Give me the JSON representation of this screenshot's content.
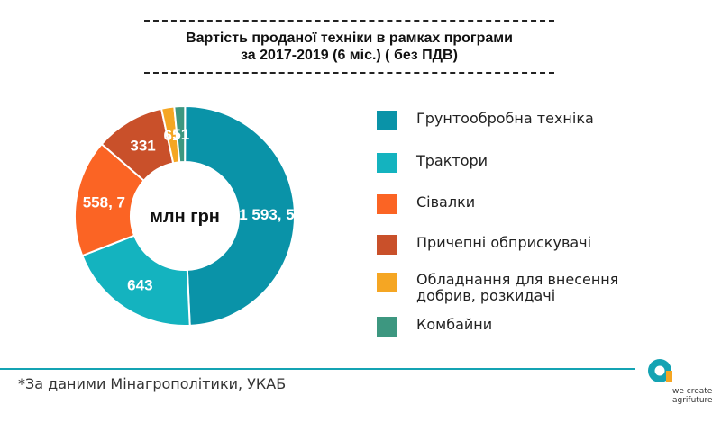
{
  "title": {
    "line1": "Вартість проданої техніки в рамках програми",
    "line2": "за 2017-2019 (6 міс.) ( без ПДВ)"
  },
  "chart_data": {
    "type": "pie",
    "center_label": "млн грн",
    "slices": [
      {
        "name": "Грунтообробна техніка",
        "value": 1593.5,
        "label": "1 593, 5",
        "color": "#0a93a8"
      },
      {
        "name": "Трактори",
        "value": 643,
        "label": "643",
        "color": "#14b3bf"
      },
      {
        "name": "Сівалки",
        "value": 558.7,
        "label": "558, 7",
        "color": "#fb6424"
      },
      {
        "name": "Причепні обприскувачі",
        "value": 331,
        "label": "331",
        "color": "#c9502a"
      },
      {
        "name": "Обладнання для внесення добрив, розкидачі",
        "value": 61,
        "label": "61",
        "color": "#f5a623"
      },
      {
        "name": "Комбайни",
        "value": 51,
        "label": "51",
        "color": "#3d9780"
      }
    ],
    "legend_position": "right"
  },
  "legend": [
    {
      "label": "Грунтообробна техніка",
      "color": "#0a93a8"
    },
    {
      "label": "Трактори",
      "color": "#14b3bf"
    },
    {
      "label": "Сівалки",
      "color": "#fb6424"
    },
    {
      "label": "Причепні обприскувачі",
      "color": "#c9502a"
    },
    {
      "label": "Обладнання для внесення добрив, розкидачі",
      "color": "#f5a623"
    },
    {
      "label": "Комбайни",
      "color": "#3d9780"
    }
  ],
  "footnote": "*За даними Мінагрополітики, УКАБ",
  "logo": {
    "icon": "agrifuture-logo-icon",
    "tagline_line1": "we create",
    "tagline_line2": "agrifuture",
    "color": "#14a3b3"
  },
  "colors": {
    "footer_line": "#14a3b3"
  }
}
